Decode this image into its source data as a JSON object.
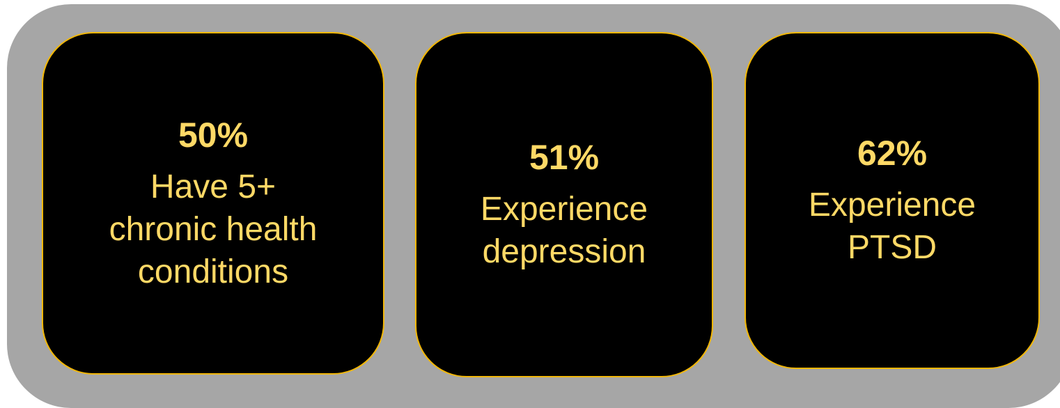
{
  "colors": {
    "panel_background": "#a6a6a6",
    "card_background": "#000000",
    "card_border": "#f2b705",
    "text": "#ffd966"
  },
  "cards": [
    {
      "value": "50%",
      "description": "Have 5+\nchronic health\nconditions"
    },
    {
      "value": "51%",
      "description": "Experience\ndepression"
    },
    {
      "value": "62%",
      "description": "Experience\nPTSD"
    }
  ]
}
